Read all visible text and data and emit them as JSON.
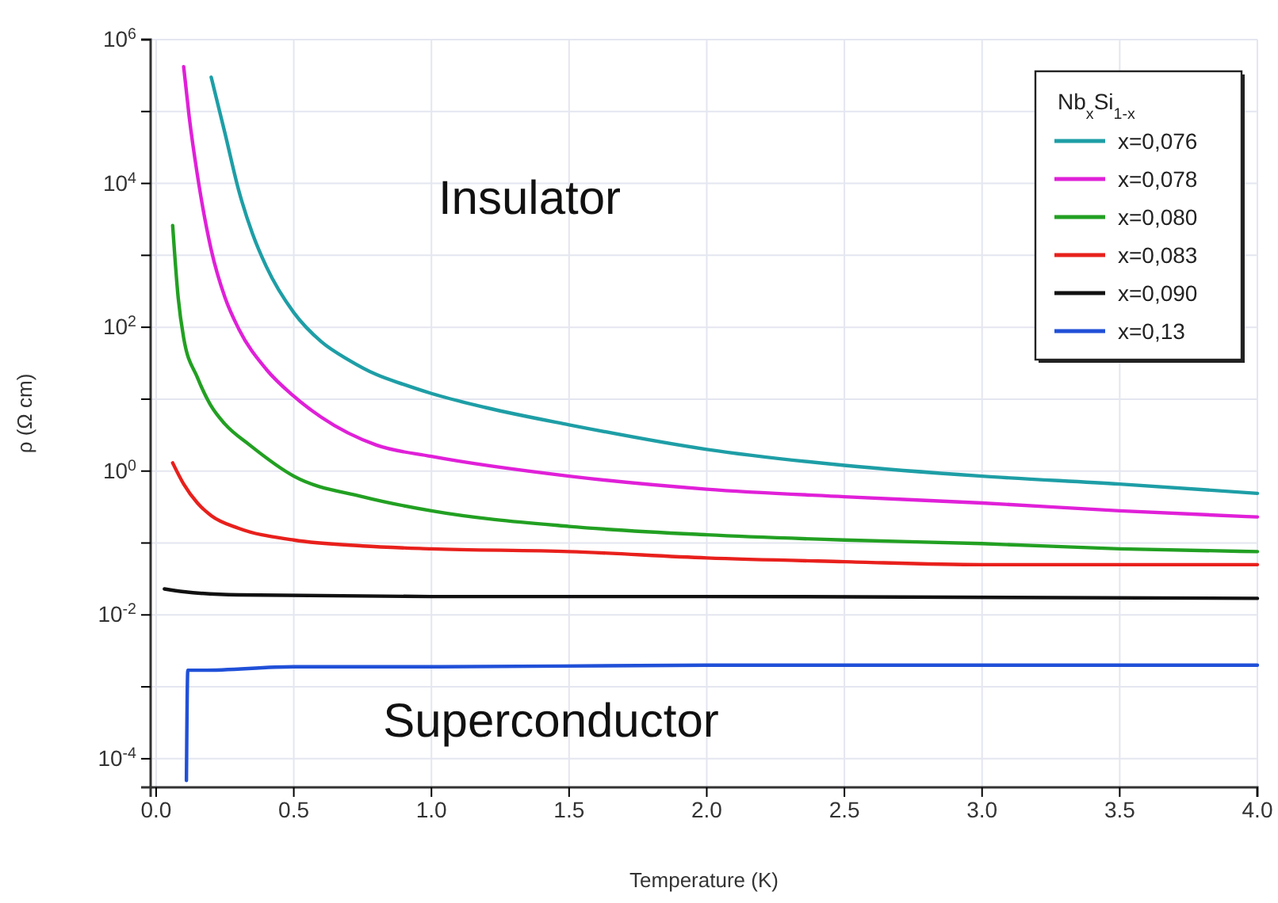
{
  "chart_data": {
    "type": "line",
    "xlabel": "Temperature (K)",
    "ylabel": "ρ (Ω cm)",
    "legend_title": "Nb$_{x}$Si$_{1-x}$",
    "log": "y",
    "grid": true,
    "legend": "top right",
    "line_style": "solid",
    "marker": "none",
    "xlim": [
      -0.02,
      4.0
    ],
    "xticks": [
      {
        "value": 0,
        "label": "0.0"
      },
      0.5,
      {
        "value": 1,
        "label": "1.0"
      },
      1.5,
      {
        "value": 2,
        "label": "2.0"
      },
      2.5,
      {
        "value": 3,
        "label": "3.0"
      },
      3.5,
      {
        "value": 4,
        "label": "4.0"
      }
    ],
    "ylim": [
      4e-05,
      1000000
    ],
    "yticks": [
      {
        "value": 0.0001,
        "label": "10$^{-4}$"
      },
      {
        "value": 0.001,
        "label": null
      },
      {
        "value": 0.01,
        "label": "10$^{-2}$"
      },
      {
        "value": 0.1,
        "label": null
      },
      {
        "value": 1,
        "label": "10$^{0}$"
      },
      {
        "value": 10,
        "label": null
      },
      {
        "value": 100,
        "label": "10$^{2}$"
      },
      {
        "value": 1000,
        "label": null
      },
      {
        "value": 10000,
        "label": "10$^{4}$"
      },
      {
        "value": 100000,
        "label": null
      },
      {
        "value": 1000000,
        "label": "10$^{6}$"
      }
    ],
    "annotations": [
      "Insulator",
      "Superconductor"
    ],
    "series": [
      {
        "name": "x=0,076",
        "color": "#1e9ea6",
        "x": [
          0.2,
          0.25,
          0.3,
          0.35,
          0.4,
          0.5,
          0.6,
          0.7,
          0.8,
          0.9,
          1.0,
          1.2,
          1.5,
          2.0,
          2.5,
          3.0,
          3.5,
          4.0
        ],
        "values": [
          300000,
          50000,
          8000,
          2000,
          700,
          160,
          63,
          35,
          22,
          16,
          12,
          7.6,
          4.4,
          2.0,
          1.2,
          0.85,
          0.66,
          0.49
        ]
      },
      {
        "name": "x=0,078",
        "color": "#e020d8",
        "x": [
          0.1,
          0.12,
          0.15,
          0.2,
          0.25,
          0.3,
          0.4,
          0.5,
          0.6,
          0.8,
          1.0,
          1.5,
          2.0,
          2.5,
          3.0,
          3.5,
          4.0
        ],
        "values": [
          420000,
          85000,
          13000,
          1200,
          260,
          95,
          26,
          11,
          5.6,
          2.3,
          1.6,
          0.85,
          0.56,
          0.44,
          0.36,
          0.28,
          0.23
        ]
      },
      {
        "name": "x=0,080",
        "color": "#22a022",
        "x": [
          0.06,
          0.08,
          0.1,
          0.15,
          0.2,
          0.25,
          0.34,
          0.5,
          0.75,
          1.0,
          1.5,
          2.0,
          2.5,
          3.0,
          3.5,
          4.0
        ],
        "values": [
          2600,
          260,
          71,
          20,
          8,
          4.5,
          2.3,
          0.85,
          0.44,
          0.28,
          0.17,
          0.13,
          0.11,
          0.098,
          0.083,
          0.076
        ]
      },
      {
        "name": "x=0,083",
        "color": "#e8201c",
        "x": [
          0.06,
          0.1,
          0.15,
          0.2,
          0.3,
          0.5,
          0.75,
          1.0,
          1.5,
          2.0,
          2.5,
          3.0,
          3.5,
          4.0
        ],
        "values": [
          1.3,
          0.66,
          0.36,
          0.24,
          0.16,
          0.11,
          0.091,
          0.083,
          0.076,
          0.062,
          0.055,
          0.05,
          0.05,
          0.05
        ]
      },
      {
        "name": "x=0,090",
        "color": "#111111",
        "x": [
          0.03,
          0.1,
          0.3,
          1.0,
          2.0,
          4.0
        ],
        "values": [
          0.023,
          0.021,
          0.019,
          0.018,
          0.018,
          0.017
        ]
      },
      {
        "name": "x=0,13",
        "color": "#2050d8",
        "x": [
          0.11,
          0.115,
          0.17,
          0.5,
          1.0,
          2.0,
          3.0,
          4.0
        ],
        "values": [
          5e-05,
          0.0017,
          0.0017,
          0.0019,
          0.0019,
          0.002,
          0.002,
          0.002
        ]
      }
    ]
  }
}
